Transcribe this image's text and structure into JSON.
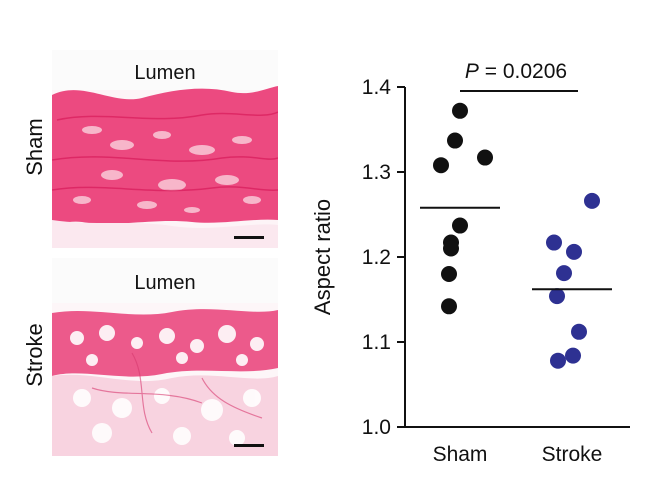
{
  "histology": {
    "rows": [
      {
        "label": "Sham",
        "lumen_label": "Lumen"
      },
      {
        "label": "Stroke",
        "lumen_label": "Lumen"
      }
    ],
    "stain_colors": {
      "dense": "#e8336e",
      "light": "#f3a0bd",
      "background": "#fbe8ef"
    }
  },
  "chart_data": {
    "type": "scatter",
    "ylabel": "Aspect ratio",
    "ylim": [
      1.0,
      1.4
    ],
    "yticks": [
      "1.0",
      "1.1",
      "1.2",
      "1.3",
      "1.4"
    ],
    "categories": [
      "Sham",
      "Stroke"
    ],
    "series": [
      {
        "category": "Sham",
        "color": "#111111",
        "values": [
          1.372,
          1.337,
          1.317,
          1.308,
          1.237,
          1.217,
          1.21,
          1.18,
          1.142
        ],
        "mean": 1.258
      },
      {
        "category": "Stroke",
        "color": "#2e3192",
        "values": [
          1.266,
          1.217,
          1.206,
          1.181,
          1.154,
          1.112,
          1.084,
          1.078
        ],
        "mean": 1.162
      }
    ],
    "annotation": {
      "italic_part": "P",
      "rest": " = 0.0206"
    },
    "grid": false
  }
}
